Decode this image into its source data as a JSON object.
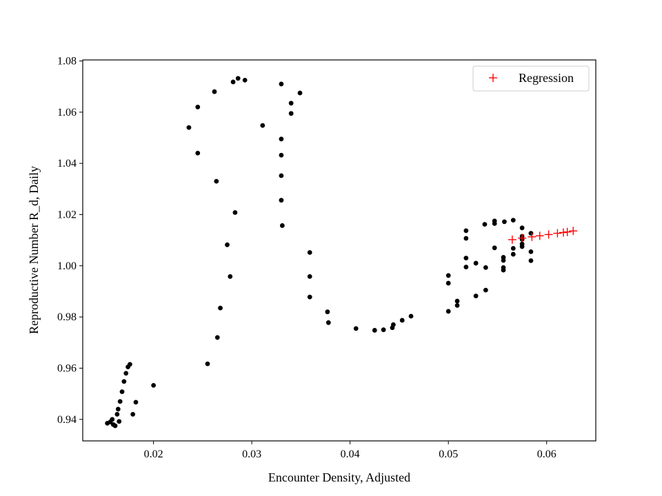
{
  "chart_data": {
    "type": "scatter",
    "xlabel": "Encounter Density, Adjusted",
    "ylabel": "Reproductive Number R_d, Daily",
    "xlim": [
      0.0128,
      0.065
    ],
    "ylim": [
      0.9316,
      1.0804
    ],
    "xticks": [
      0.02,
      0.03,
      0.04,
      0.05,
      0.06
    ],
    "xtick_labels": [
      "0.02",
      "0.03",
      "0.04",
      "0.05",
      "0.06"
    ],
    "yticks": [
      0.94,
      0.96,
      0.98,
      1.0,
      1.02,
      1.04,
      1.06,
      1.08
    ],
    "ytick_labels": [
      "0.94",
      "0.96",
      "0.98",
      "1.00",
      "1.02",
      "1.04",
      "1.06",
      "1.08"
    ],
    "grid": false,
    "legend_position": "top-right",
    "series": [
      {
        "name": "",
        "marker": "dot",
        "color": "#000000",
        "x": [
          0.0153,
          0.0156,
          0.0158,
          0.0159,
          0.0161,
          0.0163,
          0.0164,
          0.0165,
          0.0166,
          0.0168,
          0.017,
          0.0172,
          0.0174,
          0.0176,
          0.0179,
          0.0182,
          0.02,
          0.0236,
          0.0245,
          0.0245,
          0.0255,
          0.0262,
          0.0264,
          0.0265,
          0.0268,
          0.0275,
          0.0278,
          0.0281,
          0.0283,
          0.0286,
          0.0293,
          0.0311,
          0.033,
          0.033,
          0.033,
          0.033,
          0.033,
          0.0331,
          0.034,
          0.034,
          0.0349,
          0.0359,
          0.0359,
          0.0359,
          0.0377,
          0.0378,
          0.0406,
          0.0425,
          0.0434,
          0.0443,
          0.0444,
          0.0453,
          0.0462,
          0.05,
          0.05,
          0.05,
          0.0509,
          0.0509,
          0.0518,
          0.0518,
          0.0518,
          0.0518,
          0.0528,
          0.0528,
          0.0537,
          0.0538,
          0.0538,
          0.0547,
          0.0547,
          0.0547,
          0.0556,
          0.0556,
          0.0556,
          0.0556,
          0.0557,
          0.0566,
          0.0566,
          0.0566,
          0.0575,
          0.0575,
          0.0575,
          0.0575,
          0.0575,
          0.0584,
          0.0584,
          0.0584
        ],
        "y": [
          0.9385,
          0.939,
          0.94,
          0.938,
          0.9375,
          0.942,
          0.944,
          0.9392,
          0.947,
          0.9508,
          0.9548,
          0.958,
          0.9605,
          0.9615,
          0.942,
          0.9467,
          0.9533,
          1.054,
          1.044,
          1.062,
          0.9617,
          1.068,
          1.033,
          0.972,
          0.9835,
          1.0082,
          0.9958,
          1.0718,
          1.0208,
          1.0732,
          1.0725,
          1.0548,
          1.0495,
          1.0432,
          1.0352,
          1.0256,
          1.071,
          1.0157,
          1.0595,
          1.0635,
          1.0675,
          1.0052,
          0.9878,
          0.9958,
          0.982,
          0.9778,
          0.9755,
          0.9748,
          0.975,
          0.9758,
          0.977,
          0.9787,
          0.9803,
          0.9822,
          0.9932,
          0.9962,
          0.9845,
          0.9862,
          0.9995,
          1.003,
          1.0107,
          1.0137,
          0.9882,
          1.001,
          1.0162,
          0.9905,
          0.9993,
          1.007,
          1.0165,
          1.0175,
          0.9983,
          0.9993,
          1.0021,
          1.0033,
          1.0172,
          1.0178,
          1.0045,
          1.0068,
          1.0075,
          1.0085,
          1.0148,
          1.0103,
          1.0115,
          1.0127,
          1.0055,
          1.002
        ]
      },
      {
        "name": "Regression",
        "marker": "plus",
        "color": "#ff0000",
        "x": [
          0.0565,
          0.0575,
          0.0585,
          0.0593,
          0.0602,
          0.0611,
          0.0617,
          0.0621,
          0.0627
        ],
        "y": [
          1.0102,
          1.0108,
          1.0113,
          1.0117,
          1.0122,
          1.0127,
          1.013,
          1.0132,
          1.0136
        ]
      }
    ]
  }
}
